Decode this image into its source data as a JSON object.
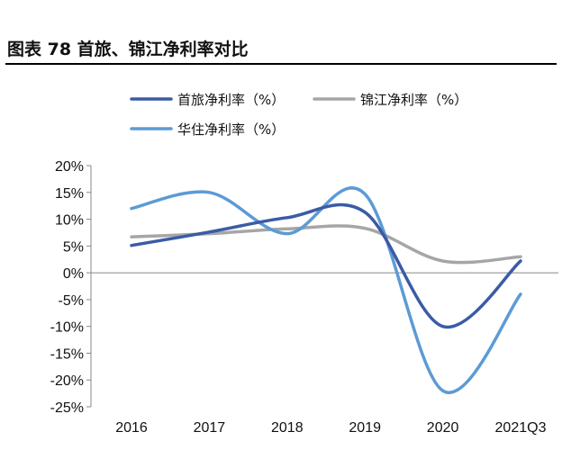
{
  "figure": {
    "title": "图表 78  首旅、锦江净利率对比"
  },
  "chart_data": {
    "type": "line",
    "title": "图表 78  首旅、锦江净利率对比",
    "xlabel": "",
    "ylabel": "",
    "categories": [
      "2016",
      "2017",
      "2018",
      "2019",
      "2020",
      "2021Q3"
    ],
    "ylim": [
      -25,
      20
    ],
    "yticks": [
      "20%",
      "15%",
      "10%",
      "5%",
      "0%",
      "-5%",
      "-10%",
      "-15%",
      "-20%",
      "-25%"
    ],
    "ytick_values": [
      20,
      15,
      10,
      5,
      0,
      -5,
      -10,
      -15,
      -20,
      -25
    ],
    "series": [
      {
        "name": "首旅净利率（%）",
        "color": "#3b5ba5",
        "values": [
          5.1,
          7.6,
          10.3,
          11.3,
          -10.0,
          2.2
        ]
      },
      {
        "name": "锦江净利率（%）",
        "color": "#a6a6a6",
        "values": [
          6.7,
          7.3,
          8.2,
          8.3,
          2.2,
          3.0
        ]
      },
      {
        "name": "华住净利率（%）",
        "color": "#5b9bd5",
        "values": [
          12.0,
          15.0,
          7.3,
          14.7,
          -22.0,
          -4.0
        ]
      }
    ],
    "grid": false,
    "legend": "top"
  }
}
